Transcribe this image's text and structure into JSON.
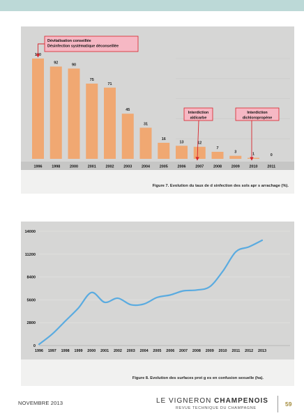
{
  "page": {
    "footer_date": "NOVEMBRE 2013",
    "brand_light": "LE VIGNERON ",
    "brand_bold": "CHAMPENOIS",
    "brand_sub": "REVUE TECHNIQUE DU CHAMPAGNE",
    "page_number": "59",
    "band_color": "#bcd9d7",
    "page_number_color": "#a38b3b"
  },
  "chart_data": [
    {
      "type": "bar",
      "categories": [
        "1996",
        "1998",
        "2000",
        "2001",
        "2002",
        "2003",
        "2004",
        "2005",
        "2006",
        "2007",
        "2008",
        "2009",
        "2010",
        "2011"
      ],
      "values": [
        100,
        92,
        90,
        75,
        71,
        45,
        31,
        16,
        13,
        12,
        7,
        3,
        1,
        0
      ],
      "value_labels": [
        "100",
        "92",
        "90",
        "75",
        "71",
        "45",
        "31",
        "16",
        "13",
        "12",
        "7",
        "3",
        "1",
        "0"
      ],
      "ylim": [
        0,
        100
      ],
      "bar_color": "#f0a872",
      "annotations": [
        {
          "lines": [
            "Dévitalisation conseillée",
            "Désinfection systématique déconseillée"
          ],
          "points_to": "1996"
        },
        {
          "lines": [
            "Interdiction",
            "aldicarbe"
          ],
          "points_to": "2007"
        },
        {
          "lines": [
            "Interdiction",
            "dichloropropène"
          ],
          "points_to": "2010"
        }
      ],
      "annotation_fill": "#f6b8c4",
      "arrow_color": "#d8232a",
      "caption": "Figure 7. Evolution du taux de d  sinfection des sols apr  s arrachage (%)."
    },
    {
      "type": "line",
      "x": [
        "1996",
        "1997",
        "1998",
        "1999",
        "2000",
        "2001",
        "2002",
        "2003",
        "2004",
        "2005",
        "2006",
        "2007",
        "2008",
        "2009",
        "2010",
        "2011",
        "2012",
        "2013"
      ],
      "y": [
        150,
        1400,
        3000,
        4600,
        6500,
        5300,
        5800,
        5000,
        5100,
        5900,
        6200,
        6700,
        6800,
        7200,
        9100,
        11500,
        12100,
        12900
      ],
      "y_ticks": [
        "0",
        "2800",
        "5600",
        "8400",
        "11200",
        "14000"
      ],
      "ylim": [
        0,
        14000
      ],
      "line_color": "#5aabe0",
      "caption": "Figure 8. Evolution des surfaces prot  g  es en confusion sexuelle (ha)."
    }
  ]
}
